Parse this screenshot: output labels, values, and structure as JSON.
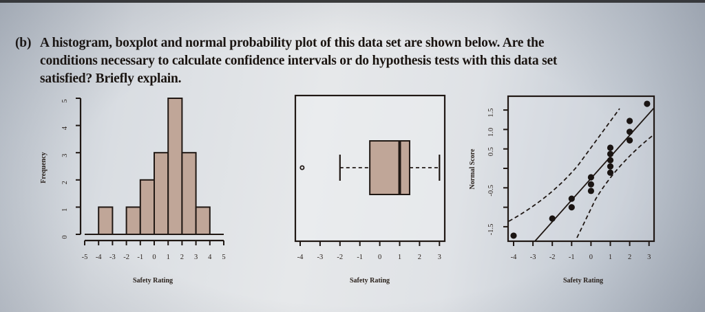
{
  "question": {
    "label": "(b)",
    "lines": [
      "A histogram, boxplot and normal probability plot of this data set are shown below.  Are the",
      "conditions necessary to calculate confidence intervals or do hypothesis tests with this data set",
      "satisfied? Briefly explain."
    ]
  },
  "colors": {
    "bar_fill": "#c0a698",
    "box_fill": "#c0a698",
    "ink": "#1f1713"
  },
  "chart_data": [
    {
      "type": "bar",
      "title": "",
      "xlabel": "Safety Rating",
      "ylabel": "Frequency",
      "bins": [
        [
          -4,
          -3
        ],
        [
          -3,
          -2
        ],
        [
          -2,
          -1
        ],
        [
          -1,
          0
        ],
        [
          0,
          1
        ],
        [
          1,
          2
        ],
        [
          2,
          3
        ],
        [
          3,
          4
        ]
      ],
      "categories": [
        "-4 to -3",
        "-3 to -2",
        "-2 to -1",
        "-1 to 0",
        "0 to 1",
        "1 to 2",
        "2 to 3",
        "3 to 4"
      ],
      "values": [
        1,
        0,
        1,
        2,
        3,
        5,
        3,
        1
      ],
      "xticks": [
        "-5",
        "-4",
        "-3",
        "-2",
        "-1",
        "0",
        "1",
        "2",
        "3",
        "4",
        "5"
      ],
      "yticks": [
        "0",
        "1",
        "2",
        "3",
        "4",
        "5"
      ],
      "xlim": [
        -5,
        5
      ],
      "ylim": [
        0,
        5
      ]
    },
    {
      "type": "boxplot",
      "title": "",
      "xlabel": "Safety Rating",
      "ylabel": "",
      "outliers": [
        -3.9
      ],
      "lower_whisker": -2.0,
      "q1": -0.5,
      "median": 1.0,
      "q3": 1.5,
      "upper_whisker": 3.0,
      "xticks": [
        "-4",
        "-3",
        "-2",
        "-1",
        "0",
        "1",
        "2",
        "3"
      ],
      "xlim": [
        -4,
        3
      ]
    },
    {
      "type": "scatter",
      "title": "",
      "xlabel": "Safety Rating",
      "ylabel": "Normal Score",
      "points": [
        {
          "x": -4,
          "y": -1.73
        },
        {
          "x": -2,
          "y": -1.29
        },
        {
          "x": -1,
          "y": -0.78
        },
        {
          "x": -1,
          "y": -1.0
        },
        {
          "x": 0,
          "y": -0.23
        },
        {
          "x": 0,
          "y": -0.41
        },
        {
          "x": 0,
          "y": -0.58
        },
        {
          "x": 1,
          "y": 0.53
        },
        {
          "x": 1,
          "y": 0.37
        },
        {
          "x": 1,
          "y": 0.21
        },
        {
          "x": 1,
          "y": 0.05
        },
        {
          "x": 1,
          "y": -0.11
        },
        {
          "x": 2,
          "y": 1.22
        },
        {
          "x": 2,
          "y": 0.94
        },
        {
          "x": 2,
          "y": 0.72
        },
        {
          "x": 2.9,
          "y": 1.66
        }
      ],
      "fit_line": {
        "from": [
          -2.9,
          -1.87
        ],
        "to": [
          3.2,
          1.57
        ]
      },
      "confidence_bands": "dashed",
      "xticks": [
        "-4",
        "-3",
        "-2",
        "-1",
        "0",
        "1",
        "2",
        "3"
      ],
      "yticks_labeled": [
        "-1.5",
        "-0.5",
        "0.5",
        "1.0",
        "1.5"
      ],
      "yticks_all": [
        -1.5,
        -1.0,
        -0.5,
        0,
        0.5,
        1.0,
        1.5
      ],
      "xlim": [
        -4,
        3
      ],
      "ylim": [
        -1.8,
        1.9
      ]
    }
  ],
  "histogram": {
    "ylabel": "Frequency",
    "xlabel": "Safety Rating",
    "yticks": [
      "0",
      "1",
      "2",
      "3",
      "4",
      "5"
    ],
    "xticks": [
      "-5",
      "-4",
      "-3",
      "-2",
      "-1",
      "0",
      "1",
      "2",
      "3",
      "4",
      "5"
    ]
  },
  "boxplot": {
    "xlabel": "Safety Rating",
    "xticks": [
      "-4",
      "-3",
      "-2",
      "-1",
      "0",
      "1",
      "2",
      "3"
    ]
  },
  "probplot": {
    "ylabel": "Normal Score",
    "xlabel": "Safety Rating",
    "yticks": [
      "1.5",
      "1.0",
      "0.5",
      "",
      "-0.5",
      "",
      "-1.5"
    ],
    "xticks": [
      "-4",
      "-3",
      "-2",
      "-1",
      "0",
      "1",
      "2",
      "3"
    ]
  }
}
